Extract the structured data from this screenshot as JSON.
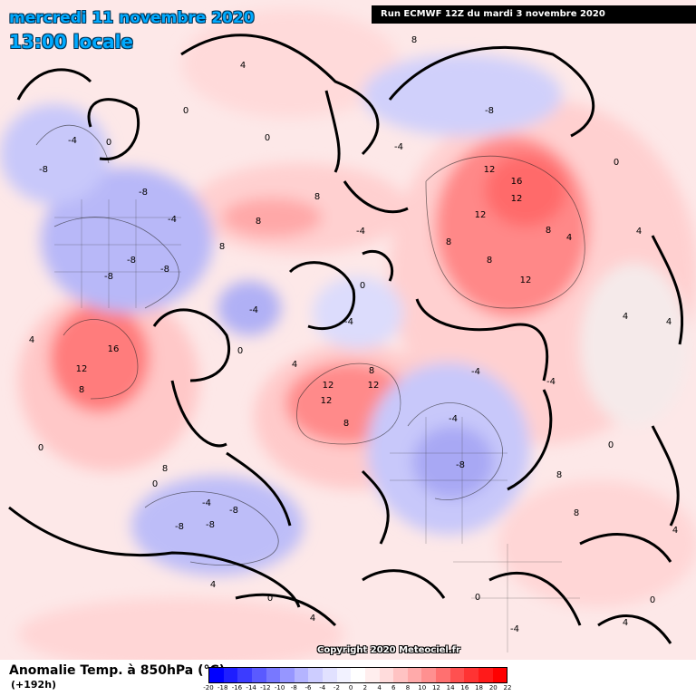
{
  "header": {
    "date": "mercredi 11 novembre 2020",
    "time": "13:00 locale",
    "run": "Run ECMWF 12Z du mardi 3 novembre 2020"
  },
  "footer": {
    "variable": "Anomalie Temp. à 850hPa (°C)",
    "lead": "(+192h)",
    "copyright": "Copyright 2020 Meteociel.fr"
  },
  "legend": {
    "values": [
      -20,
      -18,
      -16,
      -14,
      -12,
      -10,
      -8,
      -6,
      -4,
      -2,
      0,
      2,
      4,
      6,
      8,
      10,
      12,
      14,
      16,
      18,
      20,
      22
    ],
    "labels": [
      "-20",
      "-18",
      "-16",
      "-14",
      "-12",
      "-10",
      "-8",
      "-6",
      "-4",
      "-2",
      "0",
      "2",
      "4",
      "6",
      "8",
      "10",
      "12",
      "14",
      "16",
      "18",
      "20",
      "22"
    ],
    "colors": [
      "#0000ff",
      "#1e1eff",
      "#3c3cff",
      "#5a5aff",
      "#7878ff",
      "#9696ff",
      "#b4b4ff",
      "#cdcdff",
      "#e1e1ff",
      "#f2f2ff",
      "#ffffff",
      "#ffeeee",
      "#ffdcdc",
      "#ffc3c3",
      "#ffaaaa",
      "#ff9090",
      "#ff7070",
      "#ff5050",
      "#ff3333",
      "#ff1a1a",
      "#ff0000"
    ]
  },
  "contour_labels": [
    "8",
    "4",
    "0",
    "-4",
    "-8",
    "12",
    "16",
    "-4",
    "-8"
  ]
}
